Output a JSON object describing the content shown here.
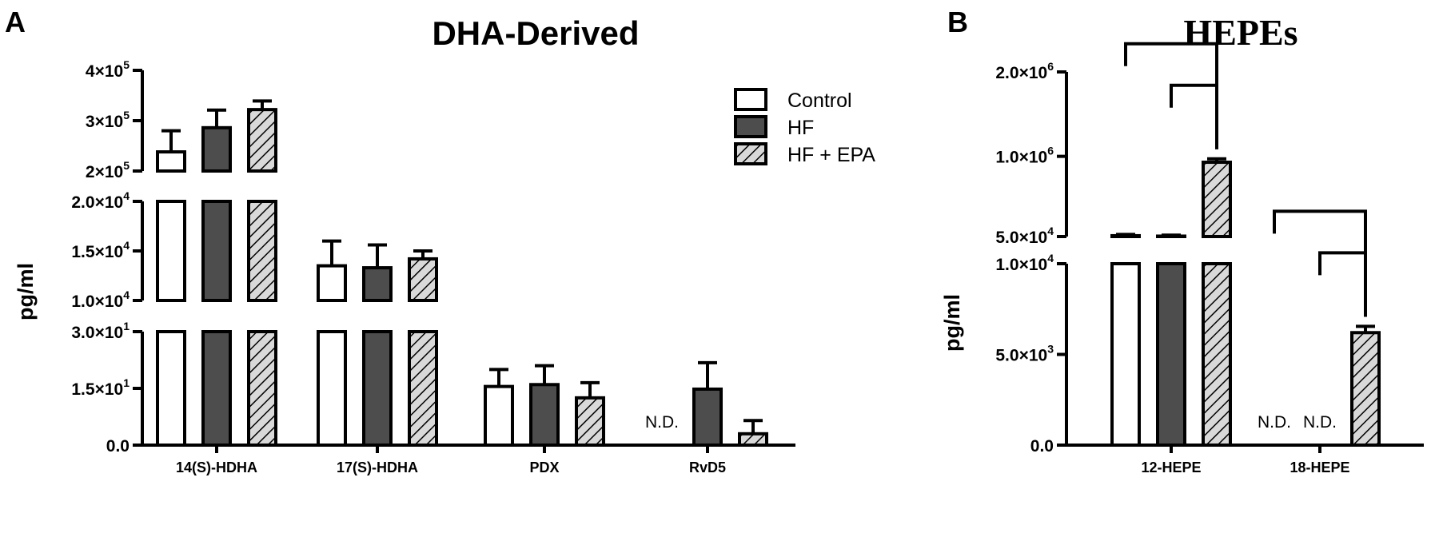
{
  "colors": {
    "Control": "#ffffff",
    "HF": "#4d4d4d",
    "HF + EPA": "#d9d9d9",
    "ink": "#000000"
  },
  "legend": [
    "Control",
    "HF",
    "HF + EPA"
  ],
  "chart_data": [
    {
      "panel": "A",
      "type": "bar",
      "title": "DHA-Derived",
      "ylabel": "pg/ml",
      "axis_break": true,
      "segments": [
        {
          "range": [
            0,
            30
          ],
          "ticks": [
            {
              "value": 0,
              "mant": "0.0",
              "exp": ""
            },
            {
              "value": 15,
              "mant": "1.5×10",
              "exp": "1"
            },
            {
              "value": 30,
              "mant": "3.0×10",
              "exp": "1"
            }
          ]
        },
        {
          "range": [
            10000,
            20000
          ],
          "ticks": [
            {
              "value": 10000,
              "mant": "1.0×10",
              "exp": "4"
            },
            {
              "value": 15000,
              "mant": "1.5×10",
              "exp": "4"
            },
            {
              "value": 20000,
              "mant": "2.0×10",
              "exp": "4"
            }
          ]
        },
        {
          "range": [
            200000,
            400000
          ],
          "ticks": [
            {
              "value": 200000,
              "mant": "2×10",
              "exp": "5"
            },
            {
              "value": 300000,
              "mant": "3×10",
              "exp": "5"
            },
            {
              "value": 400000,
              "mant": "4×10",
              "exp": "5"
            }
          ]
        }
      ],
      "categories": [
        "14(S)-HDHA",
        "17(S)-HDHA",
        "PDX",
        "RvD5"
      ],
      "series": [
        {
          "name": "Control",
          "values": [
            238000,
            13500,
            15.5,
            null
          ],
          "errors": [
            42000,
            2500,
            4.5,
            null
          ]
        },
        {
          "name": "HF",
          "values": [
            286000,
            13300,
            16.0,
            14.8
          ],
          "errors": [
            35000,
            2300,
            5.0,
            7.0
          ]
        },
        {
          "name": "HF + EPA",
          "values": [
            322000,
            14200,
            12.5,
            3.0
          ],
          "errors": [
            17000,
            800,
            4.0,
            3.5
          ]
        }
      ],
      "annotations": [
        {
          "category": "RvD5",
          "series": "Control",
          "text": "N.D."
        }
      ]
    },
    {
      "panel": "B",
      "type": "bar",
      "title": "HEPEs",
      "ylabel": "pg/ml",
      "axis_break": true,
      "segments": [
        {
          "range": [
            0,
            10000
          ],
          "ticks": [
            {
              "value": 0,
              "mant": "0.0",
              "exp": ""
            },
            {
              "value": 5000,
              "mant": "5.0×10",
              "exp": "3"
            },
            {
              "value": 10000,
              "mant": "1.0×10",
              "exp": "4"
            }
          ]
        },
        {
          "range": [
            50000,
            2000000
          ],
          "ticks": [
            {
              "value": 50000,
              "mant": "5.0×10",
              "exp": "4"
            },
            {
              "value": 1000000,
              "mant": "1.0×10",
              "exp": "6"
            },
            {
              "value": 2000000,
              "mant": "2.0×10",
              "exp": "6"
            }
          ]
        }
      ],
      "categories": [
        "12-HEPE",
        "18-HEPE"
      ],
      "series": [
        {
          "name": "Control",
          "values": [
            60000,
            null
          ],
          "errors": [
            15000,
            null
          ]
        },
        {
          "name": "HF",
          "values": [
            55000,
            null
          ],
          "errors": [
            12000,
            null
          ]
        },
        {
          "name": "HF + EPA",
          "values": [
            930000,
            6200
          ],
          "errors": [
            40000,
            350
          ]
        }
      ],
      "annotations": [
        {
          "category": "18-HEPE",
          "series": "Control",
          "text": "N.D."
        },
        {
          "category": "18-HEPE",
          "series": "HF",
          "text": "N.D."
        }
      ],
      "comparisons": [
        {
          "category": "12-HEPE",
          "from": "Control",
          "to": "HF + EPA"
        },
        {
          "category": "12-HEPE",
          "from": "HF",
          "to": "HF + EPA"
        },
        {
          "category": "18-HEPE",
          "from": "Control",
          "to": "HF + EPA"
        },
        {
          "category": "18-HEPE",
          "from": "HF",
          "to": "HF + EPA"
        }
      ]
    }
  ]
}
